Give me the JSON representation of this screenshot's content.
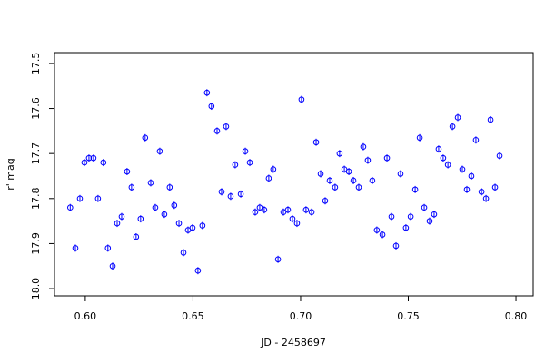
{
  "chart_data": {
    "type": "scatter",
    "xlabel": "JD - 2458697",
    "ylabel": "r' mag",
    "color": "#0000ff",
    "xlim": [
      0.5857,
      0.808
    ],
    "ylim": [
      18.016,
      17.476
    ],
    "xticks": [
      {
        "value": 0.6,
        "label": "0.60"
      },
      {
        "value": 0.65,
        "label": "0.65"
      },
      {
        "value": 0.7,
        "label": "0.70"
      },
      {
        "value": 0.75,
        "label": "0.75"
      },
      {
        "value": 0.8,
        "label": "0.80"
      }
    ],
    "yticks": [
      17.5,
      17.6,
      17.7,
      17.8,
      17.9,
      {
        "value": 18.0,
        "label": "18.0"
      }
    ],
    "x": [
      0.593,
      0.5954,
      0.5975,
      0.5996,
      0.6017,
      0.6038,
      0.6059,
      0.6084,
      0.6105,
      0.6127,
      0.6148,
      0.6169,
      0.6194,
      0.6215,
      0.6236,
      0.6257,
      0.6278,
      0.6304,
      0.6325,
      0.6346,
      0.6367,
      0.6392,
      0.6413,
      0.6435,
      0.6456,
      0.6477,
      0.6498,
      0.6523,
      0.6544,
      0.6565,
      0.6586,
      0.6612,
      0.6633,
      0.6654,
      0.6675,
      0.6696,
      0.6722,
      0.6743,
      0.6764,
      0.6789,
      0.681,
      0.6831,
      0.6852,
      0.6873,
      0.6895,
      0.692,
      0.6941,
      0.6962,
      0.6983,
      0.7004,
      0.7025,
      0.7051,
      0.7072,
      0.7093,
      0.7114,
      0.7135,
      0.716,
      0.7181,
      0.7203,
      0.7224,
      0.7245,
      0.727,
      0.7291,
      0.7312,
      0.7333,
      0.7354,
      0.738,
      0.7401,
      0.7422,
      0.7443,
      0.7464,
      0.7489,
      0.7511,
      0.7532,
      0.7553,
      0.7574,
      0.7599,
      0.762,
      0.7641,
      0.7662,
      0.7684,
      0.7705,
      0.773,
      0.7751,
      0.7772,
      0.7793,
      0.7814,
      0.784,
      0.7861,
      0.7882,
      0.7903,
      0.7924
    ],
    "y": [
      17.82,
      17.91,
      17.8,
      17.72,
      17.71,
      17.71,
      17.8,
      17.72,
      17.91,
      17.95,
      17.855,
      17.84,
      17.74,
      17.775,
      17.885,
      17.845,
      17.665,
      17.765,
      17.82,
      17.695,
      17.835,
      17.775,
      17.815,
      17.855,
      17.92,
      17.87,
      17.865,
      17.96,
      17.86,
      17.565,
      17.595,
      17.65,
      17.785,
      17.64,
      17.795,
      17.725,
      17.79,
      17.695,
      17.72,
      17.83,
      17.82,
      17.825,
      17.755,
      17.735,
      17.935,
      17.83,
      17.825,
      17.845,
      17.855,
      17.58,
      17.825,
      17.83,
      17.675,
      17.745,
      17.805,
      17.76,
      17.775,
      17.7,
      17.735,
      17.74,
      17.76,
      17.775,
      17.685,
      17.715,
      17.76,
      17.87,
      17.88,
      17.71,
      17.84,
      17.905,
      17.745,
      17.865,
      17.84,
      17.78,
      17.665,
      17.82,
      17.85,
      17.835,
      17.69,
      17.71,
      17.725,
      17.64,
      17.62,
      17.735,
      17.78,
      17.75,
      17.67,
      17.785,
      17.8,
      17.625,
      17.775,
      17.705
    ],
    "errors": [
      0.008,
      0.008,
      0.008,
      0.008,
      0.008,
      0.008,
      0.008,
      0.008,
      0.008,
      0.008,
      0.008,
      0.008,
      0.008,
      0.008,
      0.008,
      0.008,
      0.008,
      0.008,
      0.008,
      0.008,
      0.008,
      0.008,
      0.008,
      0.008,
      0.008,
      0.008,
      0.008,
      0.008,
      0.008,
      0.008,
      0.008,
      0.008,
      0.008,
      0.008,
      0.008,
      0.008,
      0.008,
      0.008,
      0.008,
      0.008,
      0.008,
      0.008,
      0.008,
      0.008,
      0.008,
      0.008,
      0.008,
      0.008,
      0.008,
      0.008,
      0.008,
      0.008,
      0.008,
      0.008,
      0.008,
      0.008,
      0.008,
      0.008,
      0.008,
      0.008,
      0.008,
      0.008,
      0.008,
      0.008,
      0.008,
      0.008,
      0.008,
      0.008,
      0.008,
      0.008,
      0.008,
      0.008,
      0.008,
      0.008,
      0.008,
      0.008,
      0.008,
      0.008,
      0.008,
      0.008,
      0.008,
      0.008,
      0.008,
      0.008,
      0.008,
      0.008,
      0.008,
      0.008,
      0.008,
      0.008,
      0.008,
      0.008
    ]
  }
}
